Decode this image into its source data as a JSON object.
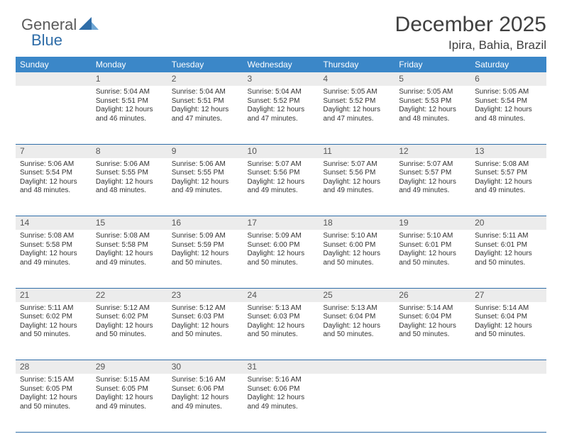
{
  "brand": {
    "part1": "General",
    "part2": "Blue",
    "accent_color": "#2f6da8"
  },
  "title": "December 2025",
  "location": "Ipira, Bahia, Brazil",
  "colors": {
    "header_bg": "#3b87c8",
    "header_text": "#ffffff",
    "daynum_bg": "#ececec",
    "daynum_text": "#555555",
    "body_text": "#333333",
    "rule": "#2f6da8"
  },
  "day_headers": [
    "Sunday",
    "Monday",
    "Tuesday",
    "Wednesday",
    "Thursday",
    "Friday",
    "Saturday"
  ],
  "weeks": [
    [
      null,
      {
        "n": "1",
        "sr": "5:04 AM",
        "ss": "5:51 PM",
        "dl": "12 hours and 46 minutes."
      },
      {
        "n": "2",
        "sr": "5:04 AM",
        "ss": "5:51 PM",
        "dl": "12 hours and 47 minutes."
      },
      {
        "n": "3",
        "sr": "5:04 AM",
        "ss": "5:52 PM",
        "dl": "12 hours and 47 minutes."
      },
      {
        "n": "4",
        "sr": "5:05 AM",
        "ss": "5:52 PM",
        "dl": "12 hours and 47 minutes."
      },
      {
        "n": "5",
        "sr": "5:05 AM",
        "ss": "5:53 PM",
        "dl": "12 hours and 48 minutes."
      },
      {
        "n": "6",
        "sr": "5:05 AM",
        "ss": "5:54 PM",
        "dl": "12 hours and 48 minutes."
      }
    ],
    [
      {
        "n": "7",
        "sr": "5:06 AM",
        "ss": "5:54 PM",
        "dl": "12 hours and 48 minutes."
      },
      {
        "n": "8",
        "sr": "5:06 AM",
        "ss": "5:55 PM",
        "dl": "12 hours and 48 minutes."
      },
      {
        "n": "9",
        "sr": "5:06 AM",
        "ss": "5:55 PM",
        "dl": "12 hours and 49 minutes."
      },
      {
        "n": "10",
        "sr": "5:07 AM",
        "ss": "5:56 PM",
        "dl": "12 hours and 49 minutes."
      },
      {
        "n": "11",
        "sr": "5:07 AM",
        "ss": "5:56 PM",
        "dl": "12 hours and 49 minutes."
      },
      {
        "n": "12",
        "sr": "5:07 AM",
        "ss": "5:57 PM",
        "dl": "12 hours and 49 minutes."
      },
      {
        "n": "13",
        "sr": "5:08 AM",
        "ss": "5:57 PM",
        "dl": "12 hours and 49 minutes."
      }
    ],
    [
      {
        "n": "14",
        "sr": "5:08 AM",
        "ss": "5:58 PM",
        "dl": "12 hours and 49 minutes."
      },
      {
        "n": "15",
        "sr": "5:08 AM",
        "ss": "5:58 PM",
        "dl": "12 hours and 49 minutes."
      },
      {
        "n": "16",
        "sr": "5:09 AM",
        "ss": "5:59 PM",
        "dl": "12 hours and 50 minutes."
      },
      {
        "n": "17",
        "sr": "5:09 AM",
        "ss": "6:00 PM",
        "dl": "12 hours and 50 minutes."
      },
      {
        "n": "18",
        "sr": "5:10 AM",
        "ss": "6:00 PM",
        "dl": "12 hours and 50 minutes."
      },
      {
        "n": "19",
        "sr": "5:10 AM",
        "ss": "6:01 PM",
        "dl": "12 hours and 50 minutes."
      },
      {
        "n": "20",
        "sr": "5:11 AM",
        "ss": "6:01 PM",
        "dl": "12 hours and 50 minutes."
      }
    ],
    [
      {
        "n": "21",
        "sr": "5:11 AM",
        "ss": "6:02 PM",
        "dl": "12 hours and 50 minutes."
      },
      {
        "n": "22",
        "sr": "5:12 AM",
        "ss": "6:02 PM",
        "dl": "12 hours and 50 minutes."
      },
      {
        "n": "23",
        "sr": "5:12 AM",
        "ss": "6:03 PM",
        "dl": "12 hours and 50 minutes."
      },
      {
        "n": "24",
        "sr": "5:13 AM",
        "ss": "6:03 PM",
        "dl": "12 hours and 50 minutes."
      },
      {
        "n": "25",
        "sr": "5:13 AM",
        "ss": "6:04 PM",
        "dl": "12 hours and 50 minutes."
      },
      {
        "n": "26",
        "sr": "5:14 AM",
        "ss": "6:04 PM",
        "dl": "12 hours and 50 minutes."
      },
      {
        "n": "27",
        "sr": "5:14 AM",
        "ss": "6:04 PM",
        "dl": "12 hours and 50 minutes."
      }
    ],
    [
      {
        "n": "28",
        "sr": "5:15 AM",
        "ss": "6:05 PM",
        "dl": "12 hours and 50 minutes."
      },
      {
        "n": "29",
        "sr": "5:15 AM",
        "ss": "6:05 PM",
        "dl": "12 hours and 49 minutes."
      },
      {
        "n": "30",
        "sr": "5:16 AM",
        "ss": "6:06 PM",
        "dl": "12 hours and 49 minutes."
      },
      {
        "n": "31",
        "sr": "5:16 AM",
        "ss": "6:06 PM",
        "dl": "12 hours and 49 minutes."
      },
      null,
      null,
      null
    ]
  ],
  "labels": {
    "sunrise": "Sunrise:",
    "sunset": "Sunset:",
    "daylight": "Daylight:"
  }
}
